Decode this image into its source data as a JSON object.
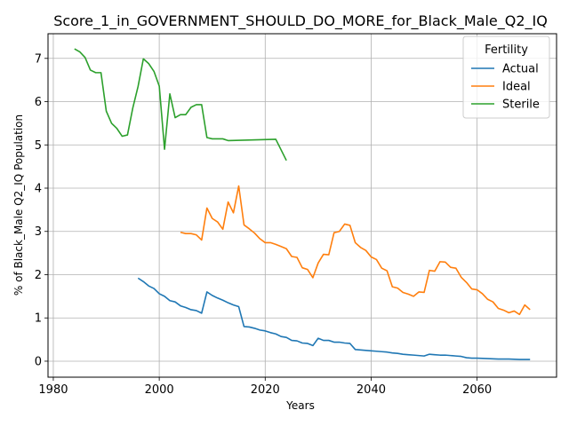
{
  "chart_data": {
    "type": "line",
    "title": "Score_1_in_GOVERNMENT_SHOULD_DO_MORE_for_Black_Male_Q2_IQ",
    "xlabel": "Years",
    "ylabel": "% of Black_Male Q2_IQ Population",
    "xlim": [
      1979,
      2075
    ],
    "ylim": [
      -0.37,
      7.57
    ],
    "xticks": [
      1980,
      2000,
      2020,
      2040,
      2060
    ],
    "yticks": [
      0,
      1,
      2,
      3,
      4,
      5,
      6,
      7
    ],
    "grid": true,
    "legend": {
      "title": "Fertility",
      "placement": "top-right"
    },
    "series": [
      {
        "name": "Actual",
        "color": "#1f77b4",
        "points": [
          [
            1996,
            1.92
          ],
          [
            1997,
            1.84
          ],
          [
            1998,
            1.74
          ],
          [
            1999,
            1.68
          ],
          [
            2000,
            1.56
          ],
          [
            2001,
            1.5
          ],
          [
            2002,
            1.4
          ],
          [
            2003,
            1.37
          ],
          [
            2004,
            1.28
          ],
          [
            2005,
            1.24
          ],
          [
            2006,
            1.19
          ],
          [
            2007,
            1.17
          ],
          [
            2008,
            1.11
          ],
          [
            2009,
            1.6
          ],
          [
            2010,
            1.52
          ],
          [
            2011,
            1.46
          ],
          [
            2012,
            1.41
          ],
          [
            2013,
            1.35
          ],
          [
            2014,
            1.3
          ],
          [
            2015,
            1.26
          ],
          [
            2016,
            0.8
          ],
          [
            2017,
            0.79
          ],
          [
            2018,
            0.76
          ],
          [
            2019,
            0.72
          ],
          [
            2020,
            0.7
          ],
          [
            2021,
            0.66
          ],
          [
            2022,
            0.63
          ],
          [
            2023,
            0.57
          ],
          [
            2024,
            0.55
          ],
          [
            2025,
            0.48
          ],
          [
            2026,
            0.47
          ],
          [
            2027,
            0.42
          ],
          [
            2028,
            0.41
          ],
          [
            2029,
            0.36
          ],
          [
            2030,
            0.53
          ],
          [
            2031,
            0.48
          ],
          [
            2032,
            0.48
          ],
          [
            2033,
            0.44
          ],
          [
            2034,
            0.44
          ],
          [
            2035,
            0.42
          ],
          [
            2036,
            0.41
          ],
          [
            2037,
            0.27
          ],
          [
            2038,
            0.26
          ],
          [
            2039,
            0.25
          ],
          [
            2040,
            0.24
          ],
          [
            2041,
            0.23
          ],
          [
            2042,
            0.22
          ],
          [
            2043,
            0.21
          ],
          [
            2044,
            0.19
          ],
          [
            2045,
            0.18
          ],
          [
            2046,
            0.16
          ],
          [
            2047,
            0.15
          ],
          [
            2048,
            0.14
          ],
          [
            2049,
            0.13
          ],
          [
            2050,
            0.12
          ],
          [
            2051,
            0.16
          ],
          [
            2052,
            0.15
          ],
          [
            2053,
            0.14
          ],
          [
            2054,
            0.14
          ],
          [
            2055,
            0.13
          ],
          [
            2056,
            0.12
          ],
          [
            2057,
            0.11
          ],
          [
            2058,
            0.08
          ],
          [
            2059,
            0.07
          ],
          [
            2060,
            0.07
          ],
          [
            2062,
            0.06
          ],
          [
            2064,
            0.05
          ],
          [
            2066,
            0.05
          ],
          [
            2068,
            0.04
          ],
          [
            2070,
            0.04
          ]
        ]
      },
      {
        "name": "Ideal",
        "color": "#ff7f0e",
        "points": [
          [
            2004,
            2.98
          ],
          [
            2005,
            2.95
          ],
          [
            2006,
            2.95
          ],
          [
            2007,
            2.92
          ],
          [
            2008,
            2.8
          ],
          [
            2009,
            3.54
          ],
          [
            2010,
            3.3
          ],
          [
            2011,
            3.22
          ],
          [
            2012,
            3.05
          ],
          [
            2013,
            3.68
          ],
          [
            2014,
            3.43
          ],
          [
            2015,
            4.05
          ],
          [
            2016,
            3.15
          ],
          [
            2017,
            3.06
          ],
          [
            2018,
            2.96
          ],
          [
            2019,
            2.83
          ],
          [
            2020,
            2.74
          ],
          [
            2021,
            2.74
          ],
          [
            2022,
            2.7
          ],
          [
            2023,
            2.65
          ],
          [
            2024,
            2.6
          ],
          [
            2025,
            2.42
          ],
          [
            2026,
            2.4
          ],
          [
            2027,
            2.16
          ],
          [
            2028,
            2.12
          ],
          [
            2029,
            1.93
          ],
          [
            2030,
            2.27
          ],
          [
            2031,
            2.47
          ],
          [
            2032,
            2.46
          ],
          [
            2033,
            2.97
          ],
          [
            2034,
            3.0
          ],
          [
            2035,
            3.17
          ],
          [
            2036,
            3.14
          ],
          [
            2037,
            2.74
          ],
          [
            2038,
            2.63
          ],
          [
            2039,
            2.56
          ],
          [
            2040,
            2.41
          ],
          [
            2041,
            2.35
          ],
          [
            2042,
            2.15
          ],
          [
            2043,
            2.09
          ],
          [
            2044,
            1.72
          ],
          [
            2045,
            1.69
          ],
          [
            2046,
            1.59
          ],
          [
            2047,
            1.55
          ],
          [
            2048,
            1.5
          ],
          [
            2049,
            1.6
          ],
          [
            2050,
            1.59
          ],
          [
            2051,
            2.1
          ],
          [
            2052,
            2.08
          ],
          [
            2053,
            2.3
          ],
          [
            2054,
            2.29
          ],
          [
            2055,
            2.17
          ],
          [
            2056,
            2.15
          ],
          [
            2057,
            1.94
          ],
          [
            2058,
            1.82
          ],
          [
            2059,
            1.67
          ],
          [
            2060,
            1.65
          ],
          [
            2061,
            1.56
          ],
          [
            2062,
            1.43
          ],
          [
            2063,
            1.37
          ],
          [
            2064,
            1.22
          ],
          [
            2065,
            1.18
          ],
          [
            2066,
            1.12
          ],
          [
            2067,
            1.16
          ],
          [
            2068,
            1.08
          ],
          [
            2069,
            1.3
          ],
          [
            2070,
            1.19
          ]
        ]
      },
      {
        "name": "Sterile",
        "color": "#2ca02c",
        "points": [
          [
            1984,
            7.22
          ],
          [
            1985,
            7.15
          ],
          [
            1986,
            7.02
          ],
          [
            1987,
            6.73
          ],
          [
            1988,
            6.67
          ],
          [
            1989,
            6.67
          ],
          [
            1990,
            5.78
          ],
          [
            1991,
            5.5
          ],
          [
            1992,
            5.38
          ],
          [
            1993,
            5.2
          ],
          [
            1994,
            5.23
          ],
          [
            1995,
            5.85
          ],
          [
            1996,
            6.35
          ],
          [
            1997,
            6.99
          ],
          [
            1998,
            6.88
          ],
          [
            1999,
            6.7
          ],
          [
            2000,
            6.36
          ],
          [
            2001,
            4.9
          ],
          [
            2002,
            6.18
          ],
          [
            2003,
            5.63
          ],
          [
            2004,
            5.7
          ],
          [
            2005,
            5.7
          ],
          [
            2006,
            5.87
          ],
          [
            2007,
            5.93
          ],
          [
            2008,
            5.93
          ],
          [
            2009,
            5.17
          ],
          [
            2010,
            5.14
          ],
          [
            2011,
            5.14
          ],
          [
            2012,
            5.14
          ],
          [
            2013,
            5.1
          ],
          [
            2022,
            5.13
          ],
          [
            2024,
            4.64
          ]
        ]
      }
    ]
  }
}
